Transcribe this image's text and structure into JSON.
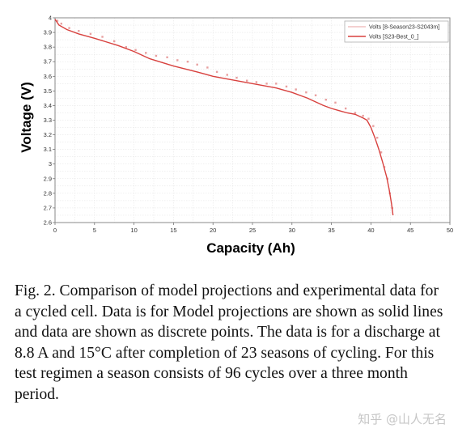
{
  "chart_data": {
    "type": "line",
    "title": "",
    "xlabel": "Capacity (Ah)",
    "ylabel": "Voltage (V)",
    "xlim": [
      0,
      50
    ],
    "ylim": [
      2.6,
      4.0
    ],
    "x_ticks": [
      "0",
      "5",
      "10",
      "15",
      "20",
      "25",
      "30",
      "35",
      "40",
      "45",
      "50"
    ],
    "y_ticks": [
      "2.6",
      "2.7",
      "2.8",
      "2.9",
      "3",
      "3.1",
      "3.2",
      "3.3",
      "3.4",
      "3.5",
      "3.6",
      "3.7",
      "3.8",
      "3.9",
      "4"
    ],
    "grid": true,
    "legend_position": "top-right",
    "series": [
      {
        "name": "Volts [8-Season23-S2043m]",
        "style": "points",
        "color": "#e8a0a0",
        "x": [
          0.3,
          0.8,
          1.8,
          3.0,
          4.5,
          6.0,
          7.5,
          9.0,
          10.2,
          11.5,
          12.8,
          14.2,
          15.5,
          16.8,
          18.0,
          19.3,
          20.5,
          21.8,
          23.0,
          24.3,
          25.5,
          26.8,
          28.0,
          29.3,
          30.5,
          31.8,
          33.0,
          34.3,
          35.5,
          36.8,
          38.0,
          39.0,
          39.7,
          40.3,
          40.8,
          41.3,
          41.7,
          42.1,
          42.4,
          42.7
        ],
        "y": [
          3.98,
          3.96,
          3.93,
          3.91,
          3.89,
          3.87,
          3.84,
          3.8,
          3.78,
          3.76,
          3.74,
          3.73,
          3.71,
          3.7,
          3.68,
          3.66,
          3.63,
          3.61,
          3.59,
          3.57,
          3.56,
          3.55,
          3.55,
          3.53,
          3.51,
          3.49,
          3.47,
          3.44,
          3.42,
          3.38,
          3.35,
          3.33,
          3.31,
          3.26,
          3.18,
          3.08,
          2.98,
          2.9,
          2.8,
          2.7
        ]
      },
      {
        "name": "Volts [S23-Best_0_]",
        "style": "line",
        "color": "#d8413e",
        "x": [
          0,
          0.5,
          1.5,
          3,
          5,
          8,
          10,
          12,
          15,
          18,
          20,
          22,
          25,
          28,
          30,
          32,
          34,
          35,
          36,
          37,
          38,
          39,
          39.5,
          40,
          40.5,
          41,
          41.5,
          42,
          42.3,
          42.6,
          42.8
        ],
        "y": [
          3.99,
          3.95,
          3.92,
          3.89,
          3.86,
          3.81,
          3.77,
          3.72,
          3.67,
          3.63,
          3.6,
          3.58,
          3.55,
          3.52,
          3.49,
          3.45,
          3.4,
          3.38,
          3.365,
          3.35,
          3.34,
          3.315,
          3.3,
          3.25,
          3.18,
          3.1,
          3.01,
          2.91,
          2.83,
          2.73,
          2.65
        ]
      }
    ]
  },
  "caption": "Fig. 2.  Comparison of model projections and experimental data for a cycled cell.  Data is for Model projections are shown as solid lines and data are shown as discrete points.  The data is for a discharge at 8.8 A and 15°C after completion of 23 seasons of cycling.  For this test regimen a season consists of 96 cycles over a three month period.",
  "watermark": "知乎 @山人无名"
}
